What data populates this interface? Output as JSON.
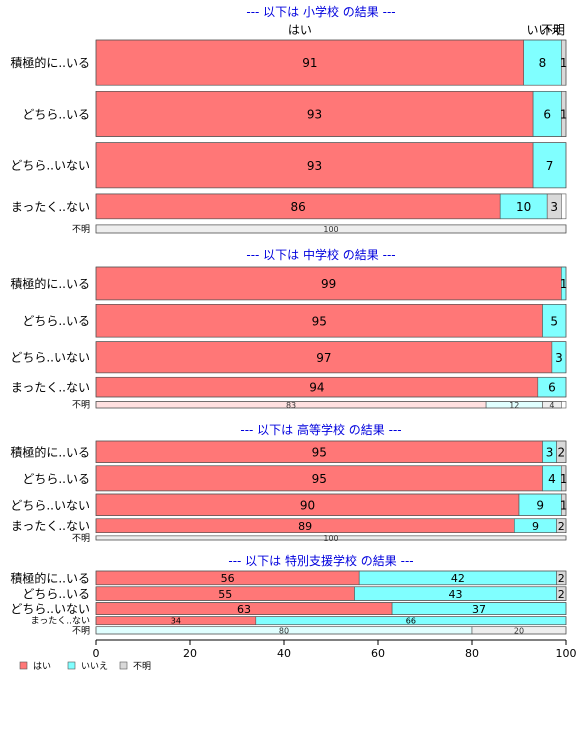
{
  "chart_data": {
    "type": "bar",
    "orientation": "horizontal",
    "stacked": true,
    "normalized_percent": true,
    "xlim": [
      0,
      100
    ],
    "xticks": [
      0,
      20,
      40,
      60,
      80,
      100
    ],
    "legend": {
      "placement": "bottom-left",
      "entries": [
        {
          "key": "yes",
          "label": "はい",
          "color": "#ff7777"
        },
        {
          "key": "no",
          "label": "いいえ",
          "color": "#80ffff"
        },
        {
          "key": "unknown",
          "label": "不明",
          "color": "#d9d9d9"
        }
      ]
    },
    "column_headers": [
      "はい",
      "いいえ",
      "不明"
    ],
    "panels": [
      {
        "title": "--- 以下は 小学校 の結果 ---",
        "show_column_headers": true,
        "rows": [
          {
            "label": "積極的に..いる",
            "weight": 1.0,
            "values": [
              91,
              8,
              1
            ],
            "labels": [
              "91",
              "8",
              "1"
            ]
          },
          {
            "label": "どちら..いる",
            "weight": 1.0,
            "values": [
              93,
              6,
              1
            ],
            "labels": [
              "93",
              "6",
              "1"
            ]
          },
          {
            "label": "どちら..いない",
            "weight": 1.0,
            "values": [
              93,
              7,
              0
            ],
            "labels": [
              "93",
              "7",
              ""
            ]
          },
          {
            "label": "まったく..ない",
            "weight": 0.55,
            "values": [
              86,
              10,
              3
            ],
            "labels": [
              "86",
              "10",
              "3"
            ]
          },
          {
            "label": "不明",
            "weight": 0.18,
            "small": true,
            "values": [
              0,
              0,
              100
            ],
            "labels": [
              "",
              "",
              "100"
            ],
            "pale": true
          }
        ]
      },
      {
        "title": "--- 以下は 中学校 の結果 ---",
        "rows": [
          {
            "label": "積極的に..いる",
            "weight": 1.0,
            "values": [
              99,
              1,
              0
            ],
            "labels": [
              "99",
              "1",
              ""
            ]
          },
          {
            "label": "どちら..いる",
            "weight": 1.0,
            "values": [
              95,
              5,
              0
            ],
            "labels": [
              "95",
              "5",
              ""
            ]
          },
          {
            "label": "どちら..いない",
            "weight": 0.95,
            "values": [
              97,
              3,
              0
            ],
            "labels": [
              "97",
              "3",
              ""
            ]
          },
          {
            "label": "まったく..ない",
            "weight": 0.6,
            "values": [
              94,
              6,
              0
            ],
            "labels": [
              "94",
              "6",
              ""
            ]
          },
          {
            "label": "不明",
            "weight": 0.2,
            "small": true,
            "values": [
              83,
              12,
              4
            ],
            "labels": [
              "83",
              "12",
              "4"
            ],
            "pale": true
          }
        ]
      },
      {
        "title": "--- 以下は 高等学校 の結果 ---",
        "rows": [
          {
            "label": "積極的に..いる",
            "weight": 0.62,
            "values": [
              95,
              3,
              2
            ],
            "labels": [
              "95",
              "3",
              "2"
            ]
          },
          {
            "label": "どちら..いる",
            "weight": 0.72,
            "values": [
              95,
              4,
              1
            ],
            "labels": [
              "95",
              "4",
              "1"
            ]
          },
          {
            "label": "どちら..いない",
            "weight": 0.62,
            "values": [
              90,
              9,
              1
            ],
            "labels": [
              "90",
              "9",
              "1"
            ]
          },
          {
            "label": "まったく..ない",
            "weight": 0.4,
            "values": [
              89,
              9,
              2
            ],
            "labels": [
              "89",
              "9",
              "2"
            ]
          },
          {
            "label": "不明",
            "weight": 0.12,
            "small": true,
            "values": [
              0,
              0,
              100
            ],
            "labels": [
              "",
              "",
              "100"
            ],
            "pale": true
          }
        ]
      },
      {
        "title": "--- 以下は 特別支援学校 の結果 ---",
        "rows": [
          {
            "label": "積極的に..いる",
            "weight": 0.34,
            "values": [
              56,
              42,
              2
            ],
            "labels": [
              "56",
              "42",
              "2"
            ]
          },
          {
            "label": "どちら..いる",
            "weight": 0.34,
            "values": [
              55,
              43,
              2
            ],
            "labels": [
              "55",
              "43",
              "2"
            ]
          },
          {
            "label": "どちら..いない",
            "weight": 0.3,
            "values": [
              63,
              37,
              0
            ],
            "labels": [
              "63",
              "37",
              ""
            ]
          },
          {
            "label": "まったく..ない",
            "weight": 0.2,
            "small": true,
            "values": [
              34,
              66,
              0
            ],
            "labels": [
              "34",
              "66",
              ""
            ]
          },
          {
            "label": "不明",
            "weight": 0.18,
            "small": true,
            "values": [
              0,
              80,
              20
            ],
            "labels": [
              "",
              "80",
              "20"
            ],
            "pale": true
          }
        ]
      }
    ]
  }
}
